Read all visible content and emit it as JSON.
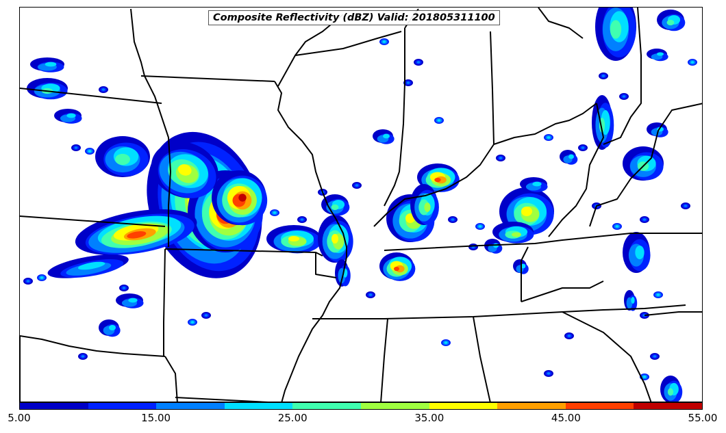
{
  "title": "Composite Reflectivity (dBZ) Valid: 201805311100",
  "colorbar": {
    "ticks": [
      "5.00",
      "15.00",
      "25.00",
      "35.00",
      "45.00",
      "55.00"
    ],
    "colors": [
      "#0000c8",
      "#0022ff",
      "#0080ff",
      "#00e0ff",
      "#40ffb0",
      "#a0ff40",
      "#ffff00",
      "#ffa000",
      "#ff4000",
      "#c00000"
    ]
  },
  "map": {
    "basemap": "US states (central / eastern)",
    "precip_colors": [
      "#0000c8",
      "#0022ff",
      "#0080ff",
      "#00e0ff",
      "#40ffb0",
      "#a0ff40",
      "#ffff00",
      "#ffa000",
      "#ff4000",
      "#c00000"
    ]
  }
}
